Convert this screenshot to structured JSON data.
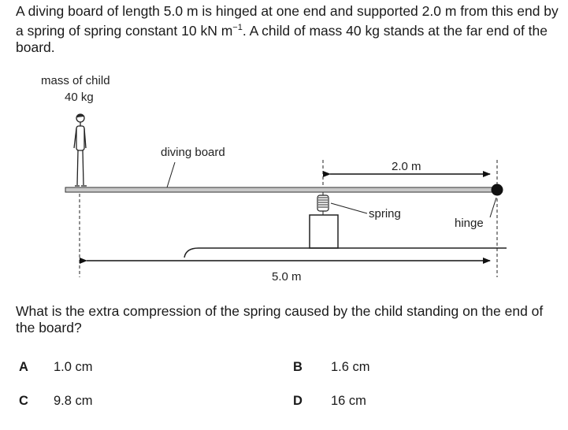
{
  "stem": {
    "before_unit": "A diving board of length 5.0 m is hinged at one end and supported 2.0 m from this end by a spring of spring constant 10 kN m",
    "exponent": "−1",
    "after_unit": ". A child of mass 40 kg stands at the far end of the board."
  },
  "diagram": {
    "mass_label": "mass of child",
    "mass_value": "40 kg",
    "board_label": "diving board",
    "spring_distance": "2.0 m",
    "spring_label": "spring",
    "hinge_label": "hinge",
    "board_length": "5.0 m"
  },
  "question": "What is the extra compression of the spring caused by the child standing on the end of the board?",
  "options": [
    {
      "letter": "A",
      "text": "1.0 cm"
    },
    {
      "letter": "B",
      "text": "1.6 cm"
    },
    {
      "letter": "C",
      "text": "9.8 cm"
    },
    {
      "letter": "D",
      "text": "16 cm"
    }
  ]
}
